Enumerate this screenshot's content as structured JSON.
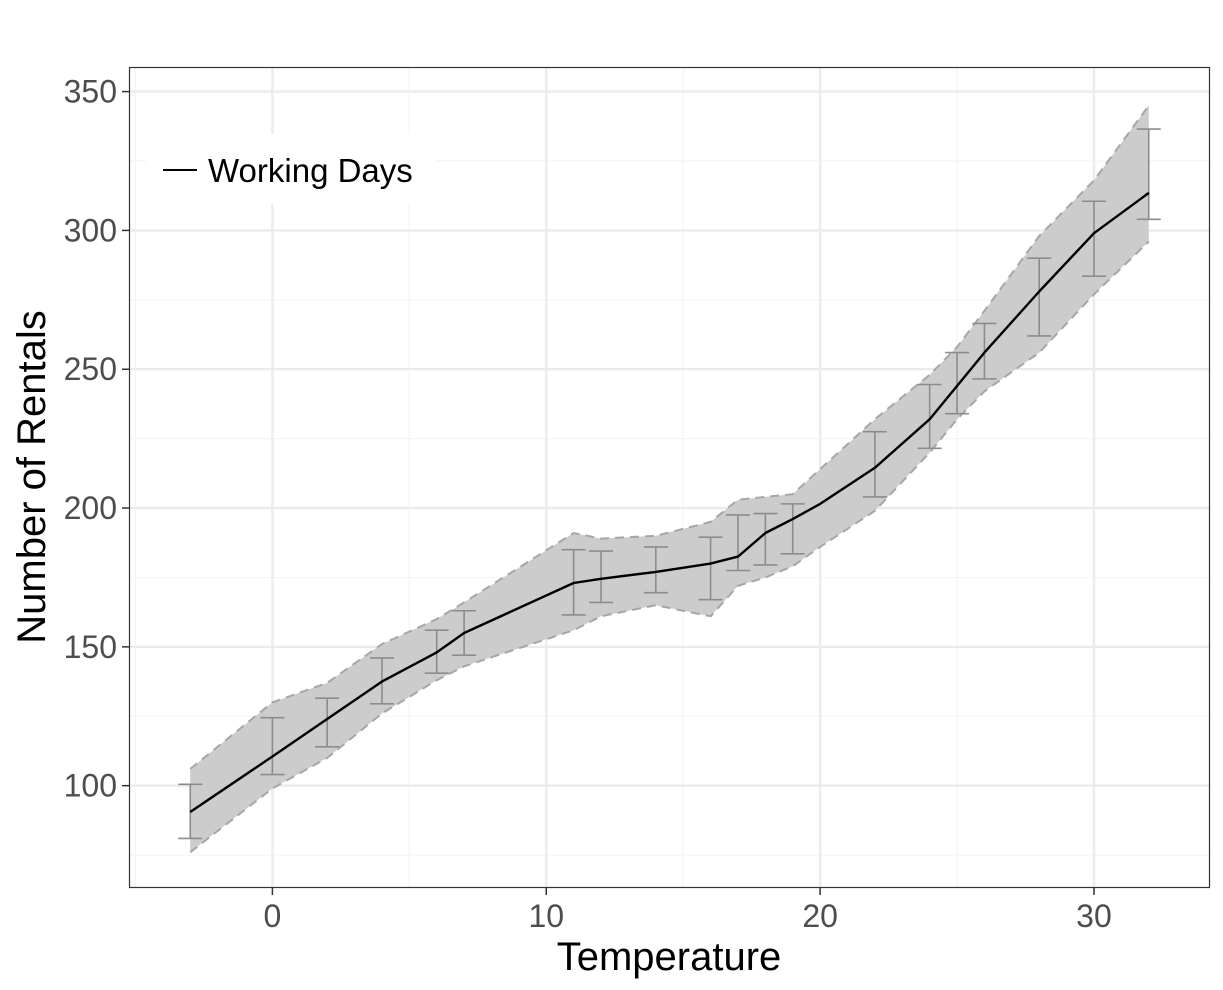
{
  "chart_data": {
    "type": "line",
    "xlabel": "Temperature",
    "ylabel": "Number of Rentals",
    "xlim": [
      -5.2,
      34.2
    ],
    "ylim": [
      63.5,
      358.5
    ],
    "x_ticks": [
      0,
      10,
      20,
      30
    ],
    "y_ticks": [
      100,
      150,
      200,
      250,
      300,
      350
    ],
    "x_minor_ticks": [
      -5,
      5,
      15,
      25
    ],
    "y_minor_ticks": [
      75,
      125,
      175,
      225,
      275,
      325
    ],
    "grid": true,
    "legend": {
      "position": "top-left",
      "entries": [
        "Working Days"
      ]
    },
    "series": [
      {
        "name": "Working Days",
        "x": [
          -3,
          0,
          2,
          4,
          6,
          7,
          11,
          12,
          14,
          16,
          17,
          18,
          19,
          20,
          22,
          24,
          25,
          26,
          28,
          30,
          32
        ],
        "y": [
          90.5,
          110.5,
          124,
          137.5,
          148,
          155,
          173,
          174.5,
          177,
          180,
          182.5,
          191,
          196,
          201.5,
          214.5,
          232,
          244,
          256,
          278,
          299,
          313.5
        ]
      }
    ],
    "confidence_band": {
      "x": [
        -3,
        0,
        2,
        4,
        6,
        7,
        11,
        12,
        14,
        16,
        17,
        18,
        19,
        20,
        22,
        24,
        25,
        26,
        28,
        30,
        32
      ],
      "lower": [
        76,
        99,
        110,
        126,
        138,
        143,
        156,
        161,
        165,
        161,
        172,
        175,
        179,
        186,
        199,
        220,
        232,
        242,
        256,
        277,
        296
      ],
      "upper": [
        106,
        130,
        137,
        151,
        160,
        166,
        191,
        189,
        190,
        195,
        203,
        204,
        205,
        214,
        232,
        248,
        258,
        271,
        298,
        318,
        345
      ]
    },
    "error_bars": [
      {
        "x": -3,
        "low": 81,
        "high": 100.5
      },
      {
        "x": 0,
        "low": 104,
        "high": 124.5
      },
      {
        "x": 2,
        "low": 114,
        "high": 131.5
      },
      {
        "x": 4,
        "low": 129.5,
        "high": 146
      },
      {
        "x": 6,
        "low": 140.5,
        "high": 156
      },
      {
        "x": 7,
        "low": 147,
        "high": 163
      },
      {
        "x": 11,
        "low": 161.5,
        "high": 185
      },
      {
        "x": 12,
        "low": 166,
        "high": 184.5
      },
      {
        "x": 14,
        "low": 169.5,
        "high": 186
      },
      {
        "x": 16,
        "low": 167,
        "high": 189.5
      },
      {
        "x": 17,
        "low": 177.5,
        "high": 197.5
      },
      {
        "x": 18,
        "low": 179.5,
        "high": 198
      },
      {
        "x": 19,
        "low": 183.5,
        "high": 201.5
      },
      {
        "x": 22,
        "low": 204,
        "high": 227.5
      },
      {
        "x": 24,
        "low": 221.5,
        "high": 244.5
      },
      {
        "x": 25,
        "low": 234,
        "high": 256
      },
      {
        "x": 26,
        "low": 246.5,
        "high": 266.5
      },
      {
        "x": 28,
        "low": 262,
        "high": 290
      },
      {
        "x": 30,
        "low": 283.5,
        "high": 310.5
      },
      {
        "x": 32,
        "low": 304,
        "high": 336.5
      }
    ],
    "colors": {
      "line": "#000000",
      "band_fill": "#cccccc",
      "band_edge": "#a6a6a6",
      "error_bar": "#8c8c8c",
      "grid_major": "#ebebeb",
      "grid_minor": "#f4f4f4",
      "panel_border": "#333333"
    }
  }
}
